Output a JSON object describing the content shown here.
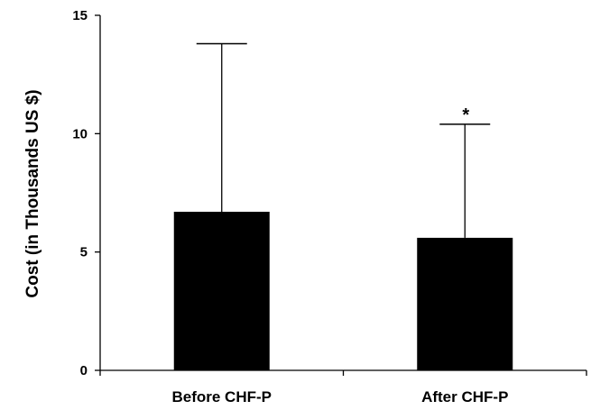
{
  "chart_data": {
    "type": "bar",
    "categories": [
      "Before CHF-P",
      "After CHF-P"
    ],
    "values": [
      6.7,
      5.6
    ],
    "error_upper": [
      13.8,
      10.4
    ],
    "annotations": [
      "",
      "*"
    ],
    "ylabel": "Cost (in Thousands US $)",
    "xlabel": "",
    "ylim": [
      0,
      15
    ],
    "yticks": [
      0,
      5,
      10,
      15
    ],
    "grid": false,
    "bar_color": "#000000"
  }
}
